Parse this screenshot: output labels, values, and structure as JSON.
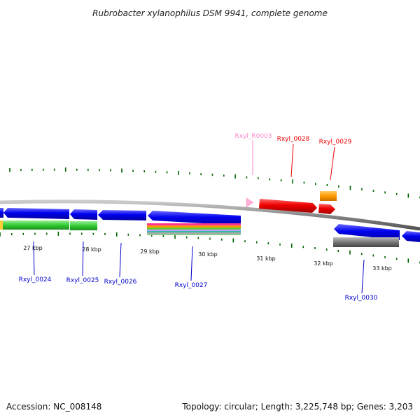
{
  "title": "Rubrobacter xylanophilus DSM 9941, complete genome",
  "footer": {
    "accession": "Accession: NC_008148",
    "summary": "Topology: circular; Length: 3,225,748 bp; Genes: 3,203"
  },
  "colors": {
    "cds": "#0000ee",
    "rna_label": "#ff88cc",
    "highlight": "#ee0000",
    "backbone": "#888888",
    "tick": "#006600",
    "green_track": "#33cc33",
    "orange": "#ff9900",
    "gray_track": "#777777"
  },
  "scale_labels": [
    "27 kbp",
    "28 kbp",
    "29 kbp",
    "30 kbp",
    "31 kbp",
    "32 kbp",
    "33 kbp"
  ],
  "gene_labels": [
    {
      "text": "Rxyl_R0003",
      "color": "#ff88cc"
    },
    {
      "text": "Rxyl_0028",
      "color": "#ee0000"
    },
    {
      "text": "Rxyl_0029",
      "color": "#ee0000"
    },
    {
      "text": "Rxyl_0024",
      "color": "#0000cc"
    },
    {
      "text": "Rxyl_0025",
      "color": "#0000cc"
    },
    {
      "text": "Rxyl_0026",
      "color": "#0000cc"
    },
    {
      "text": "Rxyl_0027",
      "color": "#0000cc"
    },
    {
      "text": "Rxyl_0030",
      "color": "#0000cc"
    }
  ]
}
